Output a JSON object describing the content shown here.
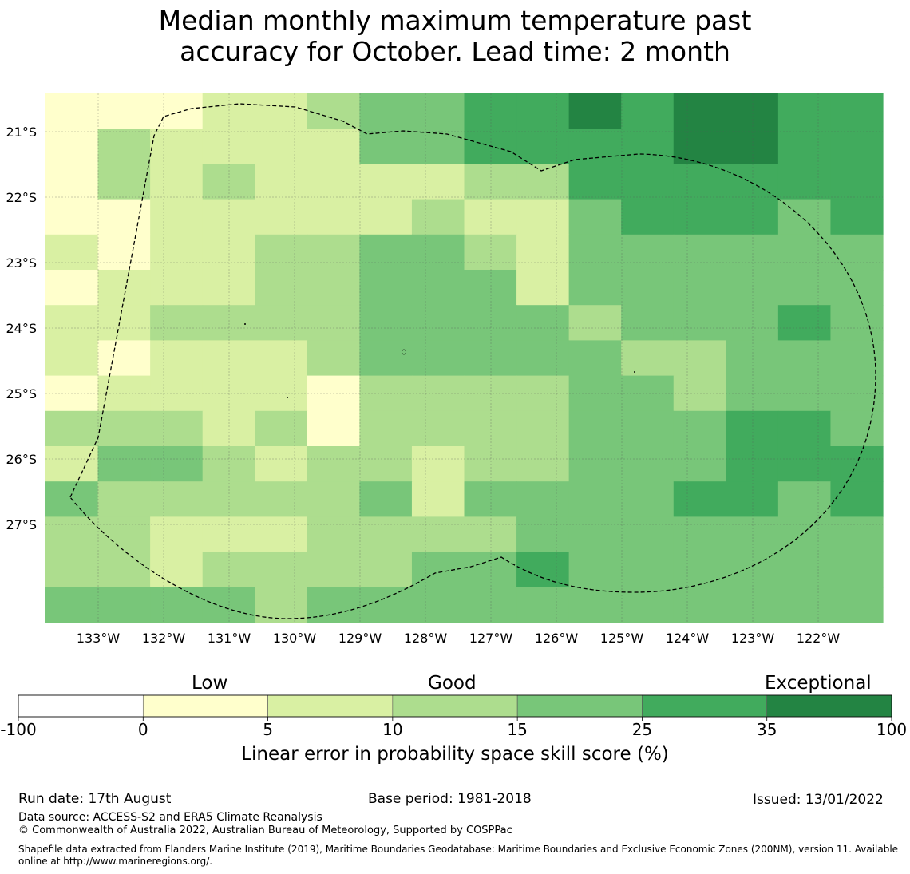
{
  "title": {
    "line1": "Median monthly maximum temperature past",
    "line2": "accuracy for October. Lead time: 2 month"
  },
  "map": {
    "lat_labels": [
      "21°S",
      "22°S",
      "23°S",
      "24°S",
      "25°S",
      "26°S",
      "27°S"
    ],
    "lon_labels": [
      "133°W",
      "132°W",
      "131°W",
      "130°W",
      "129°W",
      "128°W",
      "127°W",
      "126°W",
      "125°W",
      "124°W",
      "123°W",
      "122°W"
    ],
    "grid_rows": [
      [
        1,
        1,
        1,
        2,
        2,
        3,
        4,
        4,
        5,
        5,
        6,
        5,
        6,
        6,
        5,
        5
      ],
      [
        1,
        3,
        2,
        2,
        2,
        2,
        4,
        4,
        5,
        5,
        5,
        5,
        6,
        6,
        5,
        5
      ],
      [
        1,
        3,
        2,
        3,
        2,
        2,
        2,
        2,
        3,
        3,
        5,
        5,
        5,
        5,
        5,
        5
      ],
      [
        1,
        1,
        2,
        2,
        2,
        2,
        2,
        3,
        2,
        2,
        4,
        5,
        5,
        5,
        4,
        5
      ],
      [
        2,
        1,
        2,
        2,
        3,
        3,
        4,
        4,
        3,
        2,
        4,
        4,
        4,
        4,
        4,
        4
      ],
      [
        1,
        2,
        2,
        2,
        3,
        3,
        4,
        4,
        4,
        2,
        4,
        4,
        4,
        4,
        4,
        4
      ],
      [
        2,
        2,
        3,
        3,
        3,
        3,
        4,
        4,
        4,
        4,
        3,
        4,
        4,
        4,
        5,
        4
      ],
      [
        2,
        1,
        2,
        2,
        2,
        3,
        4,
        4,
        4,
        4,
        4,
        3,
        3,
        4,
        4,
        4
      ],
      [
        1,
        2,
        2,
        2,
        2,
        1,
        3,
        3,
        3,
        3,
        4,
        4,
        3,
        4,
        4,
        4
      ],
      [
        3,
        3,
        3,
        2,
        3,
        1,
        3,
        3,
        3,
        3,
        4,
        4,
        4,
        5,
        5,
        4
      ],
      [
        2,
        4,
        4,
        3,
        2,
        3,
        3,
        2,
        3,
        3,
        4,
        4,
        4,
        5,
        5,
        5
      ],
      [
        4,
        3,
        3,
        3,
        3,
        3,
        4,
        2,
        4,
        4,
        4,
        4,
        5,
        5,
        4,
        5
      ],
      [
        3,
        3,
        2,
        2,
        2,
        3,
        3,
        3,
        3,
        4,
        4,
        4,
        4,
        4,
        4,
        4
      ],
      [
        3,
        3,
        2,
        3,
        3,
        3,
        3,
        4,
        4,
        5,
        4,
        4,
        4,
        4,
        4,
        4
      ],
      [
        4,
        4,
        4,
        4,
        3,
        4,
        4,
        4,
        4,
        4,
        4,
        4,
        4,
        4,
        4,
        4
      ]
    ]
  },
  "colorbar": {
    "categories": [
      "Low",
      "Good",
      "Exceptional"
    ],
    "ticks": [
      "-100",
      "0",
      "5",
      "10",
      "15",
      "25",
      "35",
      "100"
    ],
    "colors": [
      "#ffffff",
      "#ffffcc",
      "#d9f0a3",
      "#addd8e",
      "#78c679",
      "#41ab5d",
      "#238443"
    ],
    "label": "Linear error in probability space skill score (%)"
  },
  "footer": {
    "run_date": "Run date: 17th August",
    "base_period": "Base period: 1981-2018",
    "issued": "Issued: 13/01/2022",
    "data_source": "Data source: ACCESS-S2 and ERA5 Climate Reanalysis",
    "copyright": "© Commonwealth of Australia 2022, Australian Bureau of Meteorology, Supported by COSPPac",
    "shapefile": "Shapefile data extracted from Flanders Marine Institute (2019), Maritime Boundaries Geodatabase: Maritime Boundaries and Exclusive Economic Zones (200NM), version 11. Available online at http://www.marineregions.org/."
  }
}
